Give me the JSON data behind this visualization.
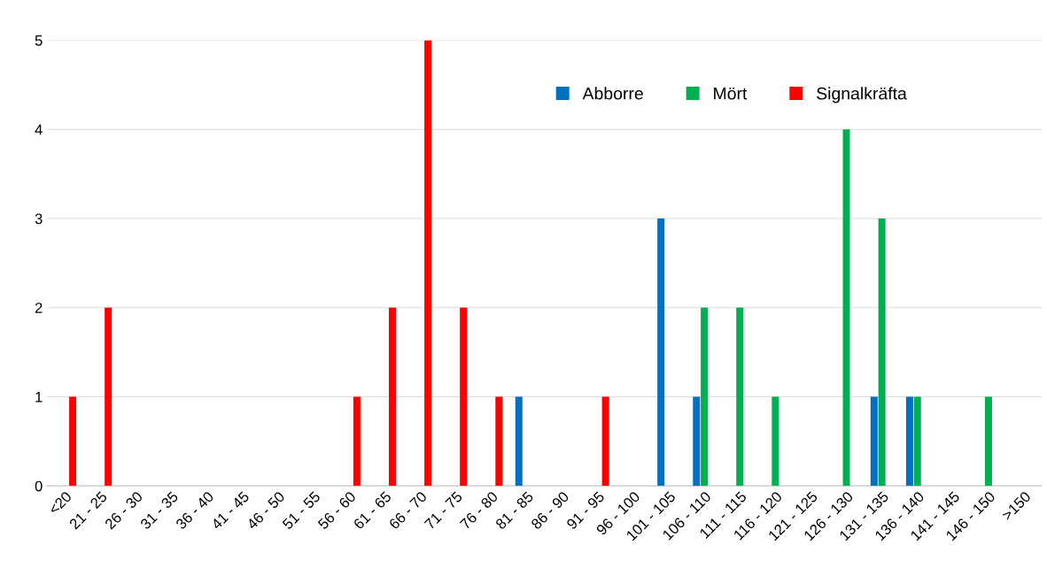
{
  "chart_data": {
    "type": "bar",
    "categories": [
      "<20",
      "21 - 25",
      "26 - 30",
      "31 - 35",
      "36 - 40",
      "41 - 45",
      "46 - 50",
      "51 - 55",
      "56 - 60",
      "61 - 65",
      "66 - 70",
      "71 - 75",
      "76 - 80",
      "81 - 85",
      "86 - 90",
      "91 - 95",
      "96 - 100",
      "101 - 105",
      "106 - 110",
      "111 - 115",
      "116 - 120",
      "121 - 125",
      "126 - 130",
      "131 - 135",
      "136 - 140",
      "141 - 145",
      "146 - 150",
      ">150"
    ],
    "series": [
      {
        "name": "Abborre",
        "color": "#0070c0",
        "values": [
          0,
          0,
          0,
          0,
          0,
          0,
          0,
          0,
          0,
          0,
          0,
          0,
          0,
          1,
          0,
          0,
          0,
          3,
          1,
          0,
          0,
          0,
          0,
          1,
          1,
          0,
          0,
          0
        ]
      },
      {
        "name": "Mört",
        "color": "#00b050",
        "values": [
          0,
          0,
          0,
          0,
          0,
          0,
          0,
          0,
          0,
          0,
          0,
          0,
          0,
          0,
          0,
          0,
          0,
          0,
          2,
          2,
          1,
          0,
          4,
          3,
          1,
          0,
          1,
          0
        ]
      },
      {
        "name": "Signalkräfta",
        "color": "#ff0000",
        "values": [
          1,
          2,
          0,
          0,
          0,
          0,
          0,
          0,
          1,
          2,
          5,
          2,
          1,
          0,
          0,
          1,
          0,
          0,
          0,
          0,
          0,
          0,
          0,
          0,
          0,
          0,
          0,
          0
        ]
      }
    ],
    "ylim": [
      0,
      5
    ],
    "yticks": [
      0,
      1,
      2,
      3,
      4,
      5
    ],
    "grid": "y",
    "legend": "top right"
  }
}
